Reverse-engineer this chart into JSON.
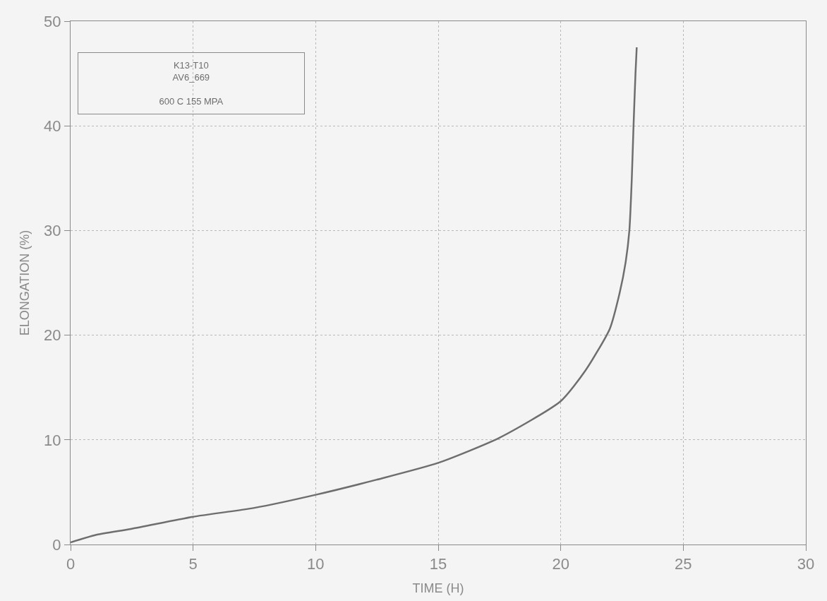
{
  "chart_data": {
    "type": "line",
    "xlabel": "TIME (H)",
    "ylabel": "ELONGATION (%)",
    "x": [
      0,
      1,
      2.5,
      5,
      7.5,
      10,
      12.5,
      15,
      17.5,
      20,
      21,
      22,
      22.4,
      22.65,
      22.8,
      22.9,
      22.97,
      23.05,
      23.1
    ],
    "series": [
      {
        "color": "#6e6e6e",
        "values": [
          0.2,
          0.9,
          1.5,
          2.65,
          3.5,
          4.75,
          6.2,
          7.8,
          10.2,
          13.7,
          16.6,
          20.6,
          24,
          27,
          30,
          35,
          40,
          45,
          47.5
        ]
      }
    ],
    "xlim": [
      0,
      30
    ],
    "xticks": [
      0,
      5,
      10,
      15,
      20,
      25,
      30
    ],
    "ylim": [
      0,
      50
    ],
    "yticks": [
      0,
      10,
      20,
      30,
      40,
      50
    ],
    "grid": true,
    "marker": "none",
    "line_style": "solid",
    "annotations": [
      "K13-T10",
      "AV6_669",
      "600 C 155 MPA"
    ]
  }
}
